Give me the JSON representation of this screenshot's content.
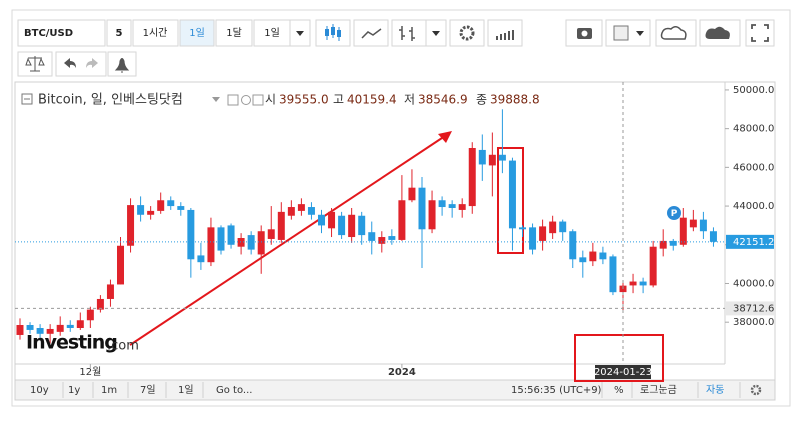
{
  "toolbar": {
    "symbol": "BTC/USD",
    "intervals": [
      "5",
      "1시간",
      "1일",
      "1달",
      "1일"
    ]
  },
  "bottom_bar": {
    "ranges": [
      "10y",
      "1y",
      "1m",
      "7일",
      "1일"
    ],
    "goto": "Go to...",
    "time": "15:56:35 (UTC+9)",
    "options": [
      "%",
      "로그눈금",
      "자동"
    ]
  },
  "chart_data": {
    "type": "candlestick",
    "title": "Bitcoin, 일, 인베스팅닷컴",
    "readout": {
      "labels": [
        "시",
        "고",
        "저",
        "종"
      ],
      "values": [
        39555,
        40159.4,
        38546.9,
        39888.8
      ],
      "value_labels": [
        "39555.0",
        "40159.4",
        "38546.9",
        "39888.8"
      ]
    },
    "watermark": [
      "Investing",
      ".com"
    ],
    "event_marker": "P",
    "categories": [
      null,
      null,
      null,
      null,
      null,
      null,
      null,
      "12월",
      null,
      null,
      null,
      null,
      null,
      null,
      null,
      null,
      null,
      null,
      null,
      null,
      null,
      null,
      null,
      null,
      null,
      null,
      null,
      null,
      null,
      null,
      null,
      null,
      null,
      null,
      null,
      null,
      null,
      null,
      "2024",
      null,
      null,
      null,
      null,
      null,
      null,
      null,
      null,
      null,
      null,
      null,
      null,
      null,
      null,
      null,
      null,
      null,
      null,
      null,
      null,
      null,
      "2024-01-23",
      null,
      null,
      null,
      null,
      null,
      null,
      null,
      null,
      null
    ],
    "series": [
      {
        "name": "Bitcoin",
        "up_color": "#e0232b",
        "down_color": "#279be0",
        "open": [
          37340,
          37855,
          37700,
          37400,
          37500,
          37860,
          37700,
          38100,
          38650,
          39200,
          39950,
          41950,
          44050,
          43550,
          43750,
          44300,
          44000,
          43800,
          41450,
          41100,
          42900,
          43000,
          41900,
          42500,
          41500,
          42300,
          42250,
          43500,
          43750,
          43950,
          43550,
          42850,
          43500,
          42400,
          43500,
          42650,
          42050,
          42450,
          42250,
          44300,
          44950,
          42800,
          44300,
          44100,
          43800,
          44000,
          46900,
          46100,
          46650,
          46350,
          42900,
          42900,
          42200,
          42600,
          43200,
          42700,
          41350,
          41150,
          41600,
          41400,
          39555,
          39900,
          40100,
          39900,
          41800,
          42200,
          42000,
          42900,
          43300,
          42700
        ],
        "high": [
          38200,
          38000,
          37900,
          37900,
          38300,
          38100,
          38500,
          38800,
          39400,
          40200,
          42400,
          44400,
          44500,
          44000,
          44700,
          44500,
          44200,
          43900,
          42100,
          43400,
          43000,
          43100,
          42600,
          42700,
          43000,
          44000,
          44200,
          44300,
          44400,
          44200,
          43800,
          43900,
          43700,
          43900,
          43700,
          43200,
          42700,
          42800,
          45600,
          45900,
          45500,
          44800,
          44500,
          44300,
          44400,
          47300,
          47700,
          47800,
          49000,
          46500,
          43000,
          43100,
          43300,
          43500,
          43300,
          42800,
          41700,
          42100,
          41900,
          41500,
          40159.4,
          40500,
          40300,
          42200,
          42800,
          42300,
          43900,
          43800,
          43700,
          42900
        ],
        "low": [
          37100,
          37400,
          37200,
          36900,
          37300,
          37500,
          37600,
          37700,
          38500,
          38800,
          39950,
          41600,
          43200,
          43300,
          43600,
          43800,
          43500,
          40300,
          40700,
          40900,
          41500,
          41800,
          41500,
          41500,
          40500,
          42000,
          42100,
          43300,
          43500,
          43300,
          42600,
          42400,
          42300,
          42100,
          42000,
          41500,
          41600,
          42000,
          42200,
          44200,
          40800,
          42600,
          43500,
          43400,
          43400,
          43600,
          45300,
          44500,
          45700,
          41700,
          42400,
          41500,
          41700,
          42300,
          42200,
          40800,
          40300,
          40900,
          41000,
          39400,
          38546.9,
          39500,
          39500,
          39800,
          41400,
          41700,
          41900,
          42700,
          42300,
          41900
        ],
        "close": [
          37855,
          37600,
          37400,
          37650,
          37860,
          37700,
          38100,
          38650,
          39200,
          39950,
          41950,
          44050,
          43550,
          43750,
          44300,
          44000,
          43800,
          41250,
          41100,
          42900,
          41700,
          42000,
          42350,
          41750,
          42700,
          42800,
          43700,
          43950,
          44100,
          43550,
          43000,
          43700,
          42500,
          43550,
          42500,
          42200,
          42400,
          42250,
          44300,
          44950,
          42800,
          44300,
          43950,
          43900,
          44100,
          47000,
          46150,
          46650,
          46350,
          42850,
          42800,
          41750,
          42950,
          43200,
          42650,
          41250,
          41100,
          41650,
          41250,
          39550,
          39888.8,
          40100,
          39900,
          41900,
          42200,
          41950,
          43400,
          43300,
          42700,
          42151.2
        ]
      }
    ],
    "ylim": [
      35840,
      50410
    ],
    "yticks": [
      {
        "value": 38000,
        "label": "38000.0"
      },
      {
        "value": 40000,
        "label": "40000.0"
      },
      {
        "value": 42000,
        "label": "42000.0"
      },
      {
        "value": 44000,
        "label": "44000.0"
      },
      {
        "value": 46000,
        "label": "46000.0"
      },
      {
        "value": 48000,
        "label": "48000.0"
      },
      {
        "value": 50000,
        "label": "50000.0"
      }
    ],
    "crosshair_price": 38712.6,
    "grid": false
  }
}
